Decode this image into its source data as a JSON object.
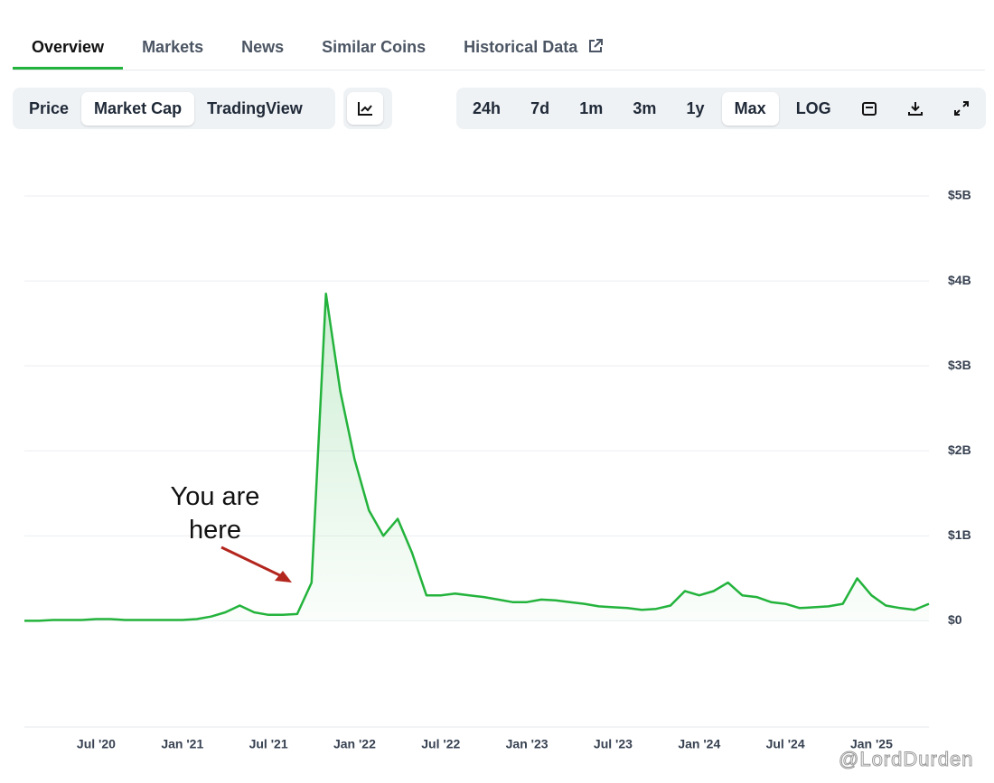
{
  "nav_tabs": [
    "Overview",
    "Markets",
    "News",
    "Similar Coins",
    "Historical Data"
  ],
  "view_tabs": [
    "Price",
    "Market Cap",
    "TradingView"
  ],
  "range_buttons": [
    "24h",
    "7d",
    "1m",
    "3m",
    "1y",
    "Max",
    "LOG"
  ],
  "watermark": "@LordDurden",
  "chart_data": {
    "type": "line",
    "annotation": "You are here",
    "x": [
      "2020-02",
      "2020-03",
      "2020-04",
      "2020-05",
      "2020-06",
      "2020-07",
      "2020-08",
      "2020-09",
      "2020-10",
      "2020-11",
      "2020-12",
      "2021-01",
      "2021-02",
      "2021-03",
      "2021-04",
      "2021-05",
      "2021-06",
      "2021-07",
      "2021-08",
      "2021-09",
      "2021-10",
      "2021-11",
      "2021-12",
      "2022-01",
      "2022-02",
      "2022-03",
      "2022-04",
      "2022-05",
      "2022-06",
      "2022-07",
      "2022-08",
      "2022-09",
      "2022-10",
      "2022-11",
      "2022-12",
      "2023-01",
      "2023-02",
      "2023-03",
      "2023-04",
      "2023-05",
      "2023-06",
      "2023-07",
      "2023-08",
      "2023-09",
      "2023-10",
      "2023-11",
      "2023-12",
      "2024-01",
      "2024-02",
      "2024-03",
      "2024-04",
      "2024-05",
      "2024-06",
      "2024-07",
      "2024-08",
      "2024-09",
      "2024-10",
      "2024-11",
      "2024-12",
      "2025-01",
      "2025-02",
      "2025-03",
      "2025-04",
      "2025-05"
    ],
    "series": [
      {
        "color": "#23b33c",
        "values": [
          0,
          0,
          0.01,
          0.01,
          0.01,
          0.02,
          0.02,
          0.01,
          0.01,
          0.01,
          0.01,
          0.01,
          0.02,
          0.05,
          0.1,
          0.18,
          0.1,
          0.07,
          0.07,
          0.08,
          0.45,
          3.85,
          2.7,
          1.9,
          1.3,
          1.0,
          1.2,
          0.8,
          0.3,
          0.3,
          0.32,
          0.3,
          0.28,
          0.25,
          0.22,
          0.22,
          0.25,
          0.24,
          0.22,
          0.2,
          0.17,
          0.16,
          0.15,
          0.13,
          0.14,
          0.18,
          0.35,
          0.3,
          0.35,
          0.45,
          0.3,
          0.28,
          0.22,
          0.2,
          0.15,
          0.16,
          0.17,
          0.2,
          0.5,
          0.3,
          0.18,
          0.15,
          0.13,
          0.2
        ]
      }
    ],
    "xlim": [
      "2020-02",
      "2025-05"
    ],
    "xticks": [
      {
        "value": "2020-07",
        "label": "Jul '20"
      },
      {
        "value": "2021-01",
        "label": "Jan '21"
      },
      {
        "value": "2021-07",
        "label": "Jul '21"
      },
      {
        "value": "2022-01",
        "label": "Jan '22"
      },
      {
        "value": "2022-07",
        "label": "Jul '22"
      },
      {
        "value": "2023-01",
        "label": "Jan '23"
      },
      {
        "value": "2023-07",
        "label": "Jul '23"
      },
      {
        "value": "2024-01",
        "label": "Jan '24"
      },
      {
        "value": "2024-07",
        "label": "Jul '24"
      },
      {
        "value": "2025-01",
        "label": "Jan '25"
      }
    ],
    "ylim": [
      -1.25,
      5.5
    ],
    "yticks": [
      {
        "value": 0,
        "label": "$0"
      },
      {
        "value": 1,
        "label": "$1B"
      },
      {
        "value": 2,
        "label": "$2B"
      },
      {
        "value": 3,
        "label": "$3B"
      },
      {
        "value": 4,
        "label": "$4B"
      },
      {
        "value": 5,
        "label": "$5B"
      }
    ],
    "grid": true
  }
}
